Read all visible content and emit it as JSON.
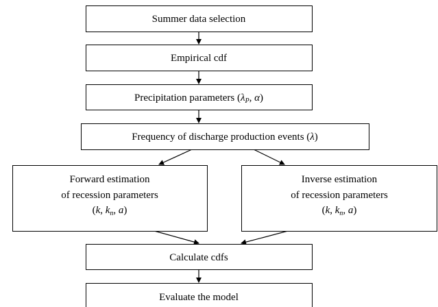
{
  "nodes": [
    {
      "lines": [
        [
          "Summer data selection"
        ]
      ]
    },
    {
      "lines": [
        [
          "Empirical cdf"
        ]
      ]
    },
    {
      "lines": [
        [
          "Precipitation parameters (",
          "λ",
          "P",
          ", ",
          "α",
          ")"
        ]
      ]
    },
    {
      "lines": [
        [
          "Frequency of discharge production events (",
          "λ",
          ")"
        ]
      ]
    },
    {
      "lines": [
        [
          "Forward estimation"
        ],
        [
          "of recession parameters"
        ],
        [
          "(",
          "k",
          ", ",
          "k",
          "n",
          ", ",
          "a",
          ")"
        ]
      ]
    },
    {
      "lines": [
        [
          "Inverse estimation"
        ],
        [
          "of recession parameters"
        ],
        [
          "(",
          "k",
          ", ",
          "k",
          "n",
          ", ",
          "a",
          ")"
        ]
      ]
    },
    {
      "lines": [
        [
          "Calculate cdfs"
        ]
      ]
    },
    {
      "lines": [
        [
          "Evaluate the model"
        ]
      ]
    }
  ]
}
